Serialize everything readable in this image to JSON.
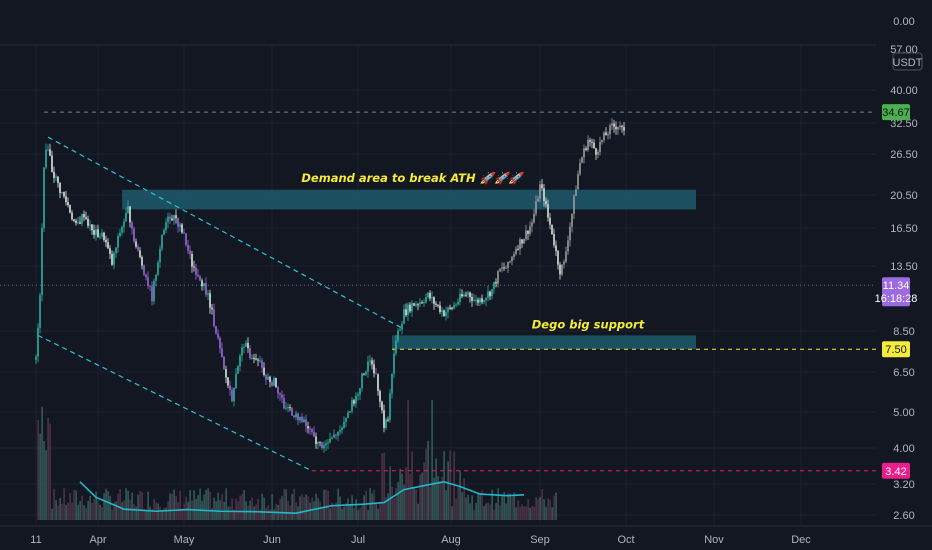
{
  "chart_data": {
    "type": "candlestick",
    "quote_currency": "USDT",
    "y_scale": "log",
    "y_ticks": [
      "0.00",
      "57.00",
      "40.00",
      "32.50",
      "26.50",
      "20.50",
      "16.50",
      "13.50",
      "8.50",
      "6.50",
      "5.00",
      "4.00",
      "3.20",
      "2.60"
    ],
    "x_ticks": [
      "11",
      "Apr",
      "May",
      "Jun",
      "Jul",
      "Aug",
      "Sep",
      "Oct",
      "Nov",
      "Dec"
    ],
    "price_badges": {
      "ath": "34.67",
      "current": "11.34",
      "countdown": "16:18:28",
      "support": "7.50",
      "low": "3.42"
    },
    "price_levels": {
      "ath": 34.67,
      "current": 11.34,
      "support": 7.5,
      "low": 3.42
    },
    "zones": [
      {
        "name": "demand",
        "label": "Demand area to break ATH 🚀🚀🚀",
        "top": 21.0,
        "bottom": 18.5,
        "start": 43,
        "end": 330
      },
      {
        "name": "support",
        "label": "Dego big support",
        "top": 8.2,
        "bottom": 7.5,
        "start": 178,
        "end": 330
      }
    ],
    "channel": {
      "upper": {
        "start": [
          0,
          29.5
        ],
        "end": [
          183,
          8.6
        ]
      },
      "lower": {
        "start": [
          0,
          8.2
        ],
        "end": [
          138,
          3.42
        ]
      }
    },
    "price_path": [
      [
        0,
        7.0
      ],
      [
        2,
        10.5
      ],
      [
        4,
        25.0
      ],
      [
        6,
        28.0
      ],
      [
        8,
        24.0
      ],
      [
        12,
        21.0
      ],
      [
        16,
        19.0
      ],
      [
        20,
        16.5
      ],
      [
        24,
        18.0
      ],
      [
        28,
        16.0
      ],
      [
        34,
        15.5
      ],
      [
        38,
        13.0
      ],
      [
        42,
        16.0
      ],
      [
        46,
        18.5
      ],
      [
        50,
        14.5
      ],
      [
        54,
        12.5
      ],
      [
        58,
        10.5
      ],
      [
        62,
        14.5
      ],
      [
        66,
        18.0
      ],
      [
        70,
        17.5
      ],
      [
        74,
        15.5
      ],
      [
        78,
        13.0
      ],
      [
        82,
        12.0
      ],
      [
        86,
        10.5
      ],
      [
        90,
        8.5
      ],
      [
        94,
        6.5
      ],
      [
        98,
        5.5
      ],
      [
        100,
        6.5
      ],
      [
        104,
        7.8
      ],
      [
        108,
        7.0
      ],
      [
        112,
        6.8
      ],
      [
        116,
        6.2
      ],
      [
        120,
        6.0
      ],
      [
        124,
        5.2
      ],
      [
        128,
        5.0
      ],
      [
        132,
        4.8
      ],
      [
        136,
        4.5
      ],
      [
        140,
        4.1
      ],
      [
        144,
        4.0
      ],
      [
        148,
        4.2
      ],
      [
        152,
        4.5
      ],
      [
        156,
        5.0
      ],
      [
        160,
        5.5
      ],
      [
        164,
        6.5
      ],
      [
        168,
        7.0
      ],
      [
        172,
        5.5
      ],
      [
        174,
        4.6
      ],
      [
        176,
        4.8
      ],
      [
        178,
        6.5
      ],
      [
        180,
        8.0
      ],
      [
        184,
        9.5
      ],
      [
        188,
        10.0
      ],
      [
        192,
        10.2
      ],
      [
        196,
        10.6
      ],
      [
        200,
        10.0
      ],
      [
        204,
        9.5
      ],
      [
        208,
        9.8
      ],
      [
        212,
        10.4
      ],
      [
        216,
        10.8
      ],
      [
        220,
        10.2
      ],
      [
        224,
        10.5
      ],
      [
        228,
        11.0
      ],
      [
        232,
        12.5
      ],
      [
        236,
        12.8
      ],
      [
        240,
        14.5
      ],
      [
        244,
        15.5
      ],
      [
        248,
        17.0
      ],
      [
        250,
        19.0
      ],
      [
        252,
        21.5
      ],
      [
        254,
        20.0
      ],
      [
        256,
        17.5
      ],
      [
        258,
        16.0
      ],
      [
        260,
        14.0
      ],
      [
        262,
        12.5
      ],
      [
        264,
        13.0
      ],
      [
        266,
        15.5
      ],
      [
        268,
        18.0
      ],
      [
        270,
        21.5
      ],
      [
        272,
        25.0
      ],
      [
        276,
        29.0
      ],
      [
        280,
        27.0
      ],
      [
        284,
        29.5
      ],
      [
        288,
        31.5
      ],
      [
        292,
        32.0
      ],
      [
        294,
        30.0
      ]
    ],
    "volume_ma_path": [
      [
        22,
        420
      ],
      [
        30,
        130
      ],
      [
        44,
        40
      ],
      [
        60,
        30
      ],
      [
        76,
        38
      ],
      [
        92,
        30
      ],
      [
        110,
        28
      ],
      [
        130,
        22
      ],
      [
        148,
        60
      ],
      [
        164,
        70
      ],
      [
        174,
        82
      ],
      [
        184,
        240
      ],
      [
        196,
        340
      ],
      [
        204,
        420
      ],
      [
        212,
        300
      ],
      [
        222,
        170
      ],
      [
        236,
        150
      ],
      [
        244,
        160
      ]
    ]
  }
}
